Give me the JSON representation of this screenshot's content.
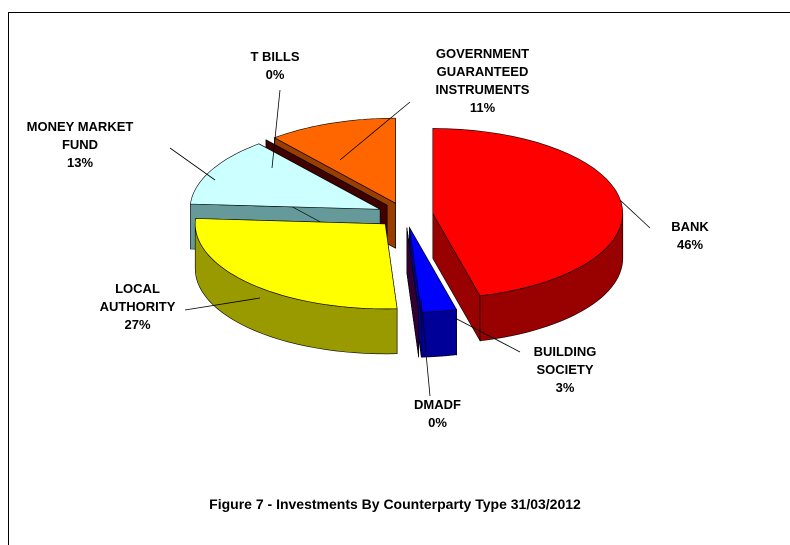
{
  "chart_data": {
    "type": "pie3d",
    "title": "Figure 7 - Investments By Counterparty Type 31/03/2012",
    "categories": [
      "BANK",
      "BUILDING SOCIETY",
      "DMADF",
      "LOCAL AUTHORITY",
      "MONEY MARKET FUND",
      "T BILLS",
      "GOVERNMENT GUARANTEED INSTRUMENTS"
    ],
    "values": [
      46,
      3,
      0,
      27,
      13,
      0,
      11
    ],
    "value_labels": [
      "46%",
      "3%",
      "0%",
      "27%",
      "13%",
      "0%",
      "11%"
    ],
    "colors": [
      "#ff0000",
      "#0000ff",
      "#660066",
      "#ffff00",
      "#ccffff",
      "#800000",
      "#ff6600"
    ],
    "side_colors": [
      "#990000",
      "#000099",
      "#330033",
      "#999900",
      "#669999",
      "#400000",
      "#993d00"
    ]
  }
}
